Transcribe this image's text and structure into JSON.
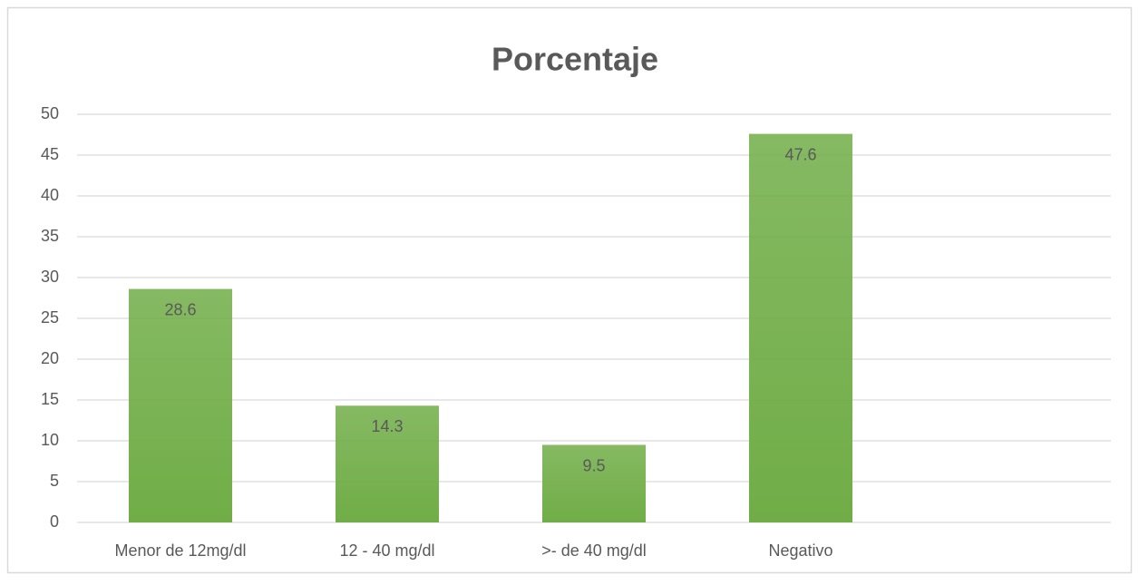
{
  "chart_data": {
    "type": "bar",
    "title": "Porcentaje",
    "categories": [
      "Menor de 12mg/dl",
      "12 - 40 mg/dl",
      ">- de 40 mg/dl",
      "Negativo",
      null
    ],
    "values": [
      28.6,
      14.3,
      9.5,
      47.6,
      null
    ],
    "color": "#70ad47",
    "ylim": [
      0,
      50
    ],
    "yticks": [
      0,
      5,
      10,
      15,
      20,
      25,
      30,
      35,
      40,
      45,
      50
    ],
    "grid": true
  }
}
